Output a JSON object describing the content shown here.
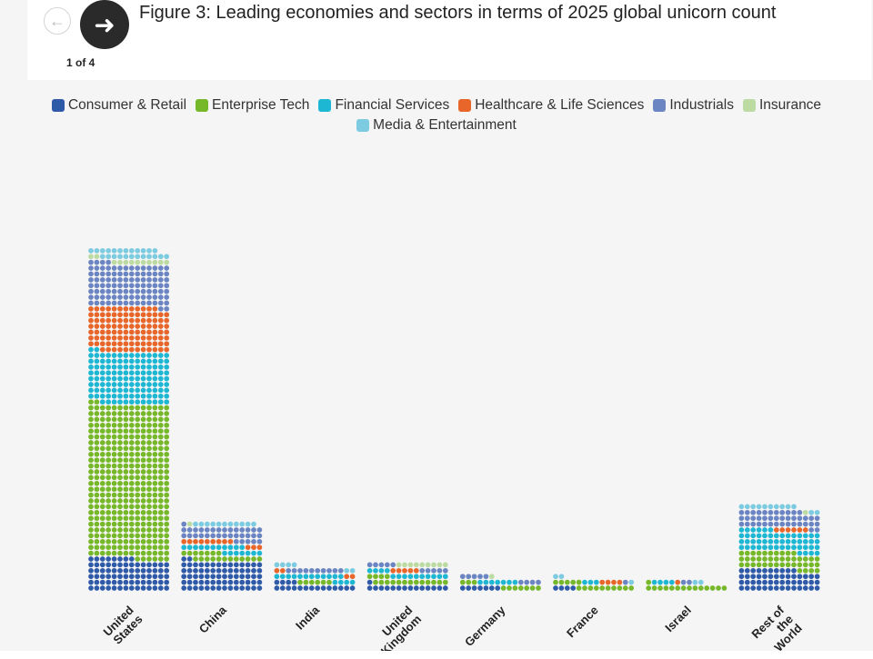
{
  "nav": {
    "prev_icon": "arrow-left-icon",
    "next_icon": "arrow-right-icon",
    "page_indicator": "1 of 4"
  },
  "chart_data": {
    "type": "waffle-bar",
    "title": "Figure 3: Leading economies and sectors in terms of 2025 global unicorn count",
    "legend_placement": "top",
    "categories": [
      "United States",
      "China",
      "India",
      "United Kingdom",
      "Germany",
      "France",
      "Israel",
      "Rest of the World"
    ],
    "category_labels": [
      [
        "United",
        "States"
      ],
      [
        "China"
      ],
      [
        "India"
      ],
      [
        "United",
        "Kingdom"
      ],
      [
        "Germany"
      ],
      [
        "France"
      ],
      [
        "Israel"
      ],
      [
        "Rest of",
        "the",
        "World"
      ]
    ],
    "series": [
      {
        "name": "Consumer & Retail",
        "color": "#2f5aa8",
        "values": [
          78,
          72,
          18,
          15,
          7,
          4,
          0,
          52
        ]
      },
      {
        "name": "Enterprise Tech",
        "color": "#77b82a",
        "values": [
          372,
          19,
          6,
          17,
          10,
          15,
          15,
          42
        ]
      },
      {
        "name": "Financial Services",
        "color": "#1eb7d3",
        "values": [
          126,
          18,
          16,
          14,
          7,
          3,
          4,
          52
        ]
      },
      {
        "name": "Healthcare & Life Sciences",
        "color": "#e8662a",
        "values": [
          108,
          12,
          4,
          5,
          0,
          4,
          1,
          6
        ]
      },
      {
        "name": "Industrials",
        "color": "#6b85c2",
        "values": [
          104,
          34,
          10,
          10,
          9,
          1,
          2,
          41
        ]
      },
      {
        "name": "Insurance",
        "color": "#bcdba2",
        "values": [
          12,
          1,
          0,
          9,
          1,
          0,
          0,
          1
        ]
      },
      {
        "name": "Media & Entertainment",
        "color": "#7ccbe0",
        "values": [
          24,
          11,
          6,
          0,
          0,
          3,
          2,
          12
        ]
      }
    ]
  }
}
